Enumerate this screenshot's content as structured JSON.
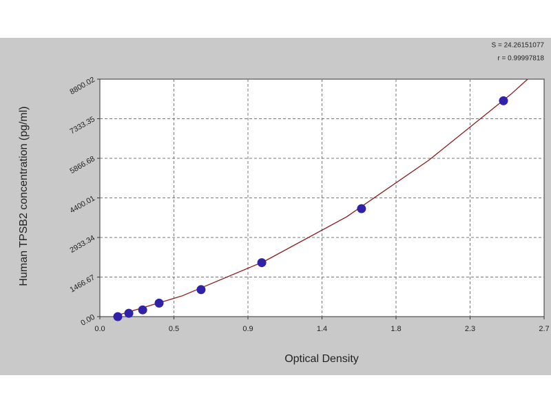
{
  "chart_data": {
    "type": "scatter",
    "xlabel": "Optical Density",
    "ylabel": "Human TPSB2 concentration (pg/ml)",
    "annotations": [
      "S = 24.26151077",
      "r = 0.99997818"
    ],
    "xlim": [
      0,
      2.7
    ],
    "xticks": [
      {
        "value": 0,
        "label": "0.0"
      },
      {
        "value": 0.45,
        "label": "0.5"
      },
      0.9,
      {
        "value": 1.35,
        "label": "1.4"
      },
      1.8,
      {
        "value": 2.25,
        "label": "2.3"
      },
      2.7
    ],
    "ylim": [
      0,
      8800.02
    ],
    "yticks": [
      {
        "value": 0,
        "label": "0.00"
      },
      1466.67,
      2933.34,
      4400.01,
      5866.68,
      7333.35,
      8800.02
    ],
    "grid": true,
    "series": [
      {
        "type": "line",
        "color": "#8b1a1a",
        "x": [
          0.08,
          0.5,
          1.0,
          1.5,
          2.0,
          2.5,
          2.6
        ],
        "values": [
          0,
          770,
          2050,
          3700,
          5800,
          8250,
          8800
        ]
      },
      {
        "type": "markers",
        "color": "#2f22a8",
        "x": [
          0.109,
          0.176,
          0.26,
          0.36,
          0.615,
          0.984,
          1.59,
          2.453
        ],
        "values": [
          0,
          125,
          250,
          500,
          1000,
          2000,
          4000,
          8000
        ]
      }
    ]
  }
}
